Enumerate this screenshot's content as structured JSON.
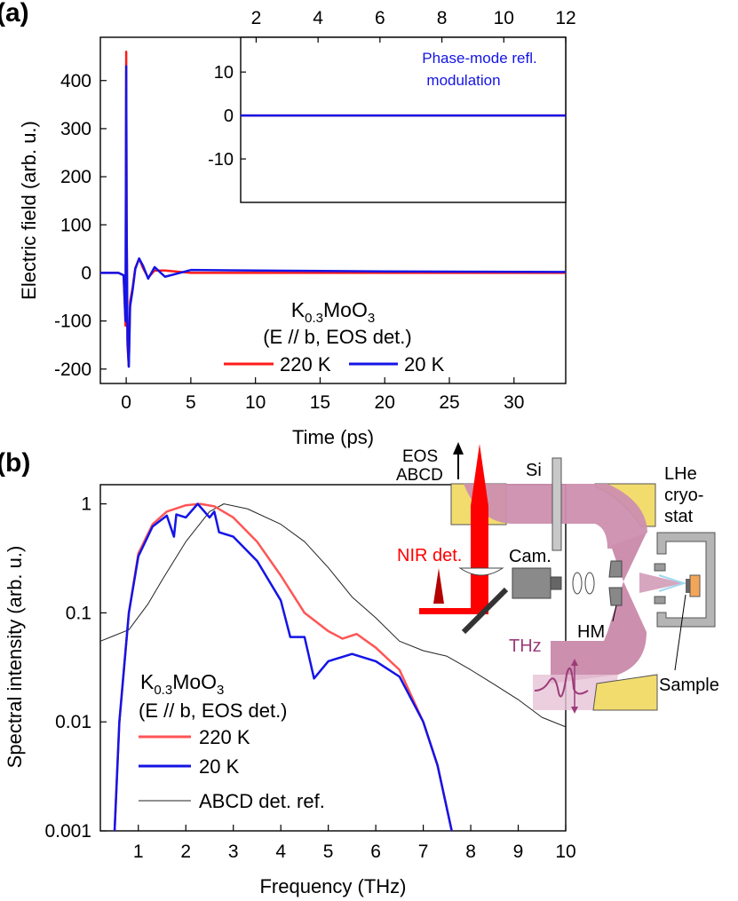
{
  "panel_labels": [
    "(a)",
    "(b)"
  ],
  "colors": {
    "series_220K": "#ff1a1a",
    "series_20K": "#1414e6",
    "abcd_ref": "#222222",
    "beam_thz": "#cc8fae",
    "mirror": "#f2dc6e",
    "nir_beam": "#ff0000",
    "thz_label": "#9b3b7a",
    "sample": "#f2a65a",
    "window_gray": "#9a9a9a"
  },
  "chart_data": [
    {
      "type": "line",
      "panel": "(a)",
      "xlabel": "Time (ps)",
      "ylabel": "Electric field (arb. u.)",
      "xlim": [
        -2,
        34
      ],
      "ylim": [
        -230,
        490
      ],
      "xticks": [
        0,
        5,
        10,
        15,
        20,
        25,
        30
      ],
      "yticks": [
        -200,
        -100,
        0,
        100,
        200,
        300,
        400
      ],
      "annotation": {
        "line1": "K",
        "sub1": "0.3",
        "mid": "MoO",
        "sub2": "3",
        "line2": "(E // b, EOS det.)"
      },
      "legend": {
        "placement": "bottom-center",
        "entries": [
          "220 K",
          "20 K"
        ]
      },
      "series": [
        {
          "name": "220 K",
          "x": [
            -2,
            -0.6,
            -0.2,
            -0.05,
            0.0,
            0.03,
            0.1,
            0.2,
            0.3,
            0.5,
            0.7,
            1.0,
            1.3,
            1.7,
            2.2,
            3,
            5,
            10,
            20,
            34
          ],
          "y": [
            0,
            0,
            -5,
            -110,
            460,
            120,
            -150,
            -195,
            -60,
            -30,
            10,
            30,
            10,
            -10,
            5,
            5,
            0,
            0,
            0,
            0
          ]
        },
        {
          "name": "20 K",
          "x": [
            -2,
            -0.6,
            -0.2,
            -0.05,
            0.0,
            0.03,
            0.1,
            0.2,
            0.3,
            0.5,
            0.7,
            1.0,
            1.3,
            1.7,
            2.2,
            3,
            5,
            10,
            20,
            34
          ],
          "y": [
            0,
            0,
            -5,
            -100,
            430,
            110,
            -140,
            -195,
            -70,
            -35,
            8,
            30,
            15,
            -12,
            12,
            -8,
            6,
            5,
            3,
            2
          ]
        }
      ],
      "inset": {
        "xlim": [
          1.5,
          12
        ],
        "ylim": [
          -20,
          18
        ],
        "xticks": [
          2,
          4,
          6,
          8,
          10,
          12
        ],
        "yticks": [
          -10,
          0,
          10
        ],
        "xticks_position": "top",
        "label_line1": "Phase-mode refl.",
        "label_line2": "modulation",
        "series": [
          {
            "name": "220 K",
            "x": [
              1.5,
              12
            ],
            "y": [
              0,
              0
            ]
          },
          {
            "name": "20 K",
            "x": [
              1.5,
              12
            ],
            "y": [
              0,
              0
            ]
          }
        ]
      }
    },
    {
      "type": "line",
      "panel": "(b)",
      "xlabel": "Frequency (THz)",
      "ylabel": "Spectral intensity (arb. u.)",
      "yscale": "log",
      "xlim": [
        0.2,
        10
      ],
      "ylim": [
        0.001,
        1.5
      ],
      "xticks": [
        1,
        2,
        3,
        4,
        5,
        6,
        7,
        8,
        9,
        10
      ],
      "yticks": [
        0.001,
        0.01,
        0.1,
        1
      ],
      "ytick_labels": [
        "0.001",
        "0.01",
        "0.1",
        "1"
      ],
      "annotation": {
        "line1": "K",
        "sub1": "0.3",
        "mid": "MoO",
        "sub2": "3",
        "line2": "(E // b, EOS det.)"
      },
      "legend": {
        "placement": "bottom-left",
        "entries": [
          "220 K",
          "20 K",
          "ABCD det. ref."
        ]
      },
      "series": [
        {
          "name": "220 K",
          "x": [
            0.5,
            0.6,
            0.8,
            1.0,
            1.3,
            1.6,
            2.0,
            2.3,
            2.6,
            3.0,
            3.5,
            4.0,
            4.5,
            5.0,
            5.3,
            5.6,
            6.0,
            6.5,
            7.0,
            7.3,
            7.6
          ],
          "y": [
            0.001,
            0.01,
            0.1,
            0.35,
            0.65,
            0.85,
            0.97,
            1.0,
            0.95,
            0.75,
            0.45,
            0.22,
            0.1,
            0.068,
            0.058,
            0.064,
            0.048,
            0.03,
            0.01,
            0.004,
            0.001
          ]
        },
        {
          "name": "20 K",
          "x": [
            0.5,
            0.6,
            0.8,
            1.0,
            1.3,
            1.6,
            1.75,
            1.8,
            2.0,
            2.25,
            2.5,
            2.6,
            2.7,
            3.0,
            3.5,
            4.0,
            4.2,
            4.5,
            4.7,
            5.0,
            5.5,
            6.0,
            6.5,
            7.0,
            7.3,
            7.6
          ],
          "y": [
            0.001,
            0.01,
            0.1,
            0.33,
            0.62,
            0.78,
            0.5,
            0.8,
            0.75,
            1.0,
            0.75,
            0.85,
            0.55,
            0.5,
            0.3,
            0.13,
            0.06,
            0.06,
            0.025,
            0.036,
            0.042,
            0.036,
            0.026,
            0.01,
            0.004,
            0.001
          ]
        },
        {
          "name": "ABCD det. ref.",
          "x": [
            0.2,
            0.8,
            1.2,
            1.5,
            2.0,
            2.5,
            2.8,
            3.3,
            4.0,
            4.5,
            5.0,
            5.5,
            6.0,
            6.5,
            7.0,
            7.5,
            8.0,
            8.5,
            9.0,
            9.5,
            10.0
          ],
          "y": [
            0.055,
            0.07,
            0.12,
            0.2,
            0.45,
            0.85,
            1.0,
            0.9,
            0.65,
            0.45,
            0.26,
            0.14,
            0.09,
            0.055,
            0.045,
            0.04,
            0.03,
            0.022,
            0.016,
            0.011,
            0.009
          ]
        }
      ],
      "setup_labels": {
        "eos_line1": "EOS",
        "eos_line2": "ABCD",
        "si": "Si",
        "lhe_line1": "LHe",
        "lhe_line2": "cryo-",
        "lhe_line3": "stat",
        "nir": "NIR det.",
        "cam": "Cam.",
        "hm": "HM",
        "thz": "THz",
        "sample": "Sample"
      }
    }
  ]
}
